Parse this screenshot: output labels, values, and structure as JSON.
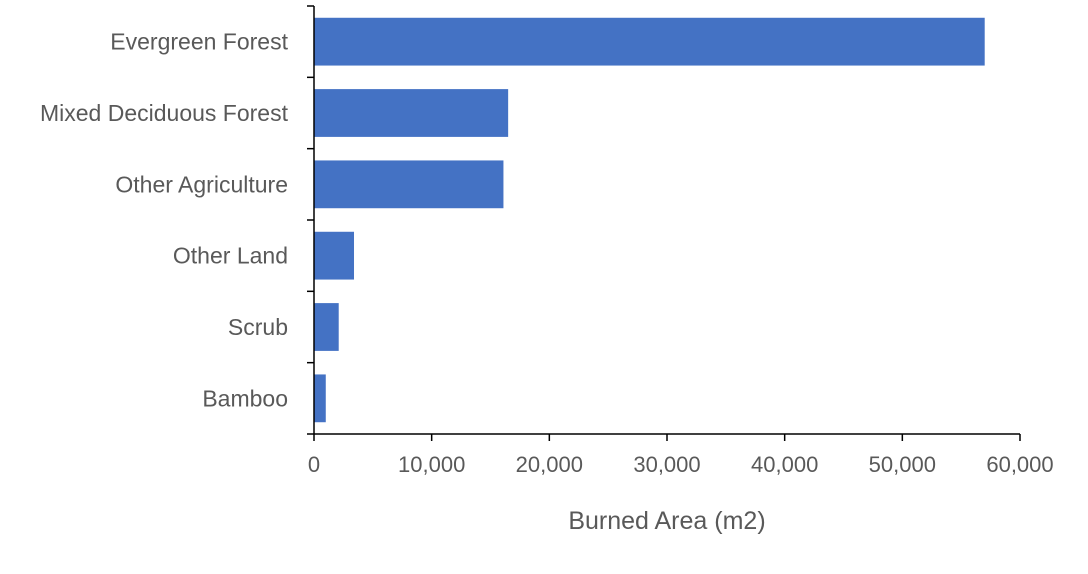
{
  "chart_data": {
    "type": "bar",
    "orientation": "horizontal",
    "categories": [
      "Evergreen Forest",
      "Mixed Deciduous Forest",
      "Other Agriculture",
      "Other Land",
      "Scrub",
      "Bamboo"
    ],
    "values": [
      57000,
      16500,
      16100,
      3400,
      2100,
      1000
    ],
    "title": "",
    "xlabel": "Burned Area (m2)",
    "ylabel": "",
    "xlim": [
      0,
      60000
    ],
    "x_ticks": [
      0,
      10000,
      20000,
      30000,
      40000,
      50000,
      60000
    ],
    "x_tick_labels": [
      "0",
      "10,000",
      "20,000",
      "30,000",
      "40,000",
      "50,000",
      "60,000"
    ],
    "grid": false,
    "legend": "none",
    "colors": {
      "bar": "#4472C4",
      "axis": "#000000",
      "text": "#595959"
    }
  }
}
